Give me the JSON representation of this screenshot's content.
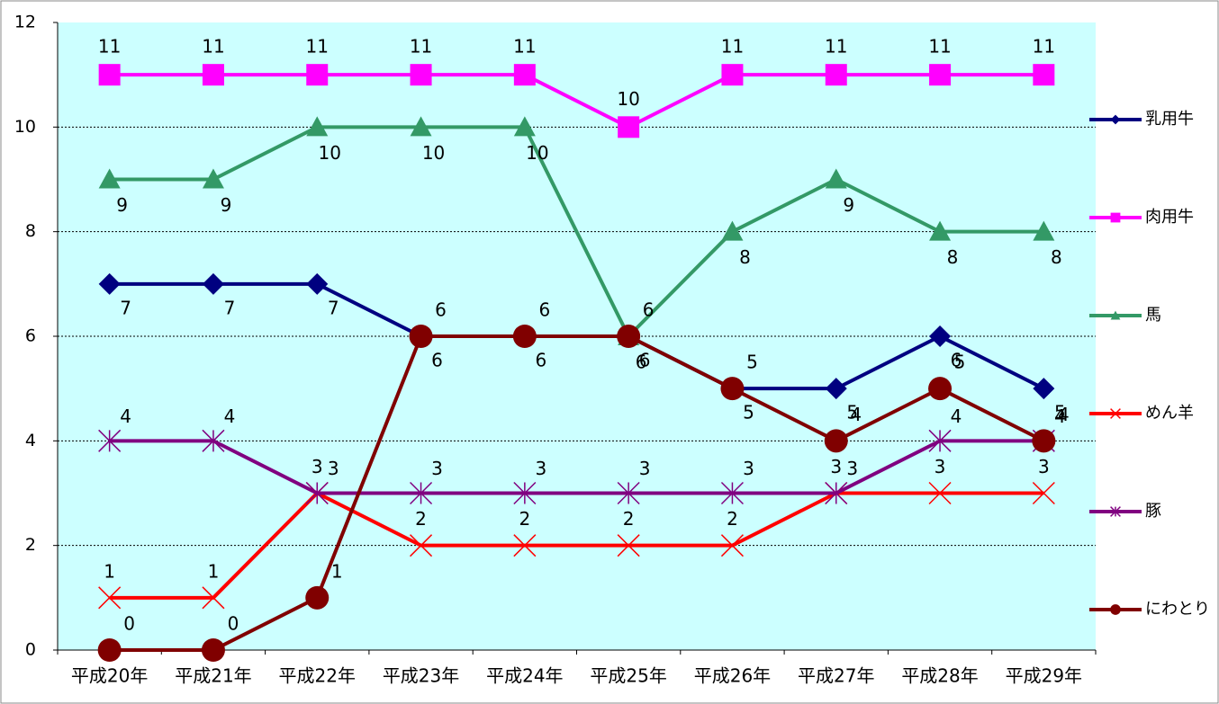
{
  "chart_data": {
    "type": "line",
    "categories": [
      "平成20年",
      "平成21年",
      "平成22年",
      "平成23年",
      "平成24年",
      "平成25年",
      "平成26年",
      "平成27年",
      "平成28年",
      "平成29年"
    ],
    "series": [
      {
        "name": "乳用牛",
        "color": "#000080",
        "marker": "diamond",
        "values": [
          7,
          7,
          7,
          6,
          6,
          6,
          5,
          5,
          6,
          5
        ]
      },
      {
        "name": "肉用牛",
        "color": "#ff00ff",
        "marker": "square",
        "values": [
          11,
          11,
          11,
          11,
          11,
          10,
          11,
          11,
          11,
          11
        ]
      },
      {
        "name": "馬",
        "color": "#339966",
        "marker": "triangle",
        "values": [
          9,
          9,
          10,
          10,
          10,
          6,
          8,
          9,
          8,
          8
        ]
      },
      {
        "name": "めん羊",
        "color": "#ff0000",
        "marker": "x",
        "values": [
          1,
          1,
          3,
          2,
          2,
          2,
          2,
          3,
          3,
          3
        ]
      },
      {
        "name": "豚",
        "color": "#800080",
        "marker": "asterisk",
        "values": [
          4,
          4,
          3,
          3,
          3,
          3,
          3,
          3,
          4,
          4
        ]
      },
      {
        "name": "にわとり",
        "color": "#800000",
        "marker": "circle",
        "values": [
          0,
          0,
          1,
          6,
          6,
          6,
          5,
          4,
          5,
          4
        ]
      }
    ],
    "ylim": [
      0,
      12
    ],
    "yticks": [
      0,
      2,
      4,
      6,
      8,
      10,
      12
    ],
    "grid": true,
    "legend": "right"
  }
}
